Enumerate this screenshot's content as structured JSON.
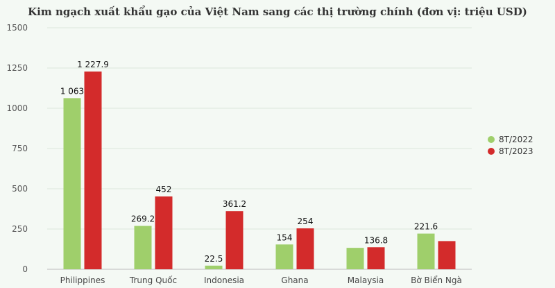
{
  "chart_data": {
    "type": "bar",
    "title": "Kim ngạch xuất khẩu gạo của Việt Nam sang các thị trường chính (đơn vị: triệu USD)",
    "xlabel": "",
    "ylabel": "",
    "ylim": [
      0,
      1500
    ],
    "yticks": [
      0,
      250,
      500,
      750,
      1000,
      1250,
      1500
    ],
    "grid": true,
    "legend_position": "right",
    "categories": [
      "Philippines",
      "Trung Quốc",
      "Indonesia",
      "Ghana",
      "Malaysia",
      "Bờ Biển Ngà"
    ],
    "series": [
      {
        "name": "8T/2022",
        "color": "#9fcf6b",
        "values": [
          1063,
          269.2,
          22.5,
          154,
          133,
          221.6
        ],
        "labels": [
          "1 063",
          "269.2",
          "22.5",
          "154",
          "",
          "221.6"
        ]
      },
      {
        "name": "8T/2023",
        "color": "#d32b2b",
        "values": [
          1227.9,
          452,
          361.2,
          254,
          136.8,
          175
        ],
        "labels": [
          "1 227.9",
          "452",
          "361.2",
          "254",
          "136.8",
          ""
        ]
      }
    ]
  }
}
